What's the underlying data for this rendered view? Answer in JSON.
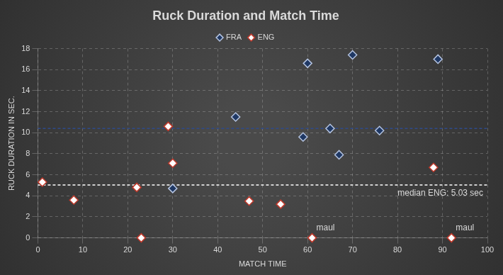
{
  "chart_data": {
    "type": "scatter",
    "title": "Ruck Duration and Match Time",
    "x_label": "MATCH TIME",
    "y_label": "RUCK DURATION IN SEC.",
    "legend": "top",
    "grid": true,
    "xlim": [
      0,
      100
    ],
    "xticks": [
      0,
      10,
      20,
      30,
      40,
      50,
      60,
      70,
      80,
      90,
      100
    ],
    "ylim": [
      0,
      18
    ],
    "yticks": [
      0,
      2,
      4,
      6,
      8,
      10,
      12,
      14,
      16,
      18
    ],
    "series": [
      {
        "name": "FRA",
        "color": "#1f3864",
        "marker": "diamond",
        "x": [
          30,
          44,
          59,
          60,
          65,
          67,
          70,
          76,
          89
        ],
        "values": [
          4.7,
          11.5,
          9.6,
          16.6,
          10.4,
          7.9,
          17.4,
          10.2,
          17.0
        ]
      },
      {
        "name": "ENG",
        "color": "#ffffff",
        "marker": "diamond",
        "x": [
          1,
          8,
          22,
          23,
          29,
          30,
          47,
          54,
          61,
          88,
          92
        ],
        "values": [
          5.3,
          3.6,
          4.8,
          0,
          10.6,
          7.1,
          3.5,
          3.2,
          0,
          6.7,
          0
        ]
      }
    ],
    "reference_lines": [
      {
        "value": 10.4,
        "color": "#2e4a8a",
        "line_style": "dashed"
      },
      {
        "value": 5.03,
        "color": "#ffffff",
        "line_style": "dashed",
        "label": "median ENG: 5.03 sec"
      }
    ],
    "annotations": [
      {
        "text": "maul",
        "x": 61,
        "y": 0
      },
      {
        "text": "maul",
        "x": 92,
        "y": 0
      }
    ]
  }
}
